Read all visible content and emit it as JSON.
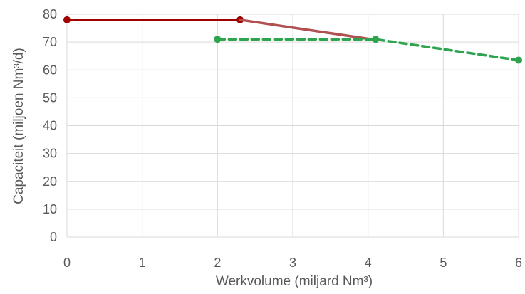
{
  "chart_data": {
    "type": "line",
    "xlabel": "Werkvolume (miljard Nm³)",
    "ylabel": "Capaciteit (miljoen Nm³/d)",
    "xlim": [
      0,
      6
    ],
    "ylim": [
      0,
      80
    ],
    "x_ticks": [
      "0",
      "1",
      "2",
      "3",
      "4",
      "5",
      "6"
    ],
    "y_ticks": [
      "0",
      "10",
      "20",
      "30",
      "40",
      "50",
      "60",
      "70",
      "80"
    ],
    "grid": "both",
    "legend": "none",
    "series": [
      {
        "color": "#a00000",
        "points": [
          [
            0,
            78
          ],
          [
            2.3,
            78
          ]
        ],
        "style": "solid",
        "markers": true
      },
      {
        "color": "#b05050",
        "points": [
          [
            2.3,
            78
          ],
          [
            4.05,
            71
          ]
        ],
        "style": "solid",
        "markers": false
      },
      {
        "color": "#2ea44f",
        "points": [
          [
            2.0,
            71
          ],
          [
            4.1,
            71
          ],
          [
            6.0,
            63.5
          ]
        ],
        "style": "dashed",
        "markers": true
      }
    ]
  }
}
